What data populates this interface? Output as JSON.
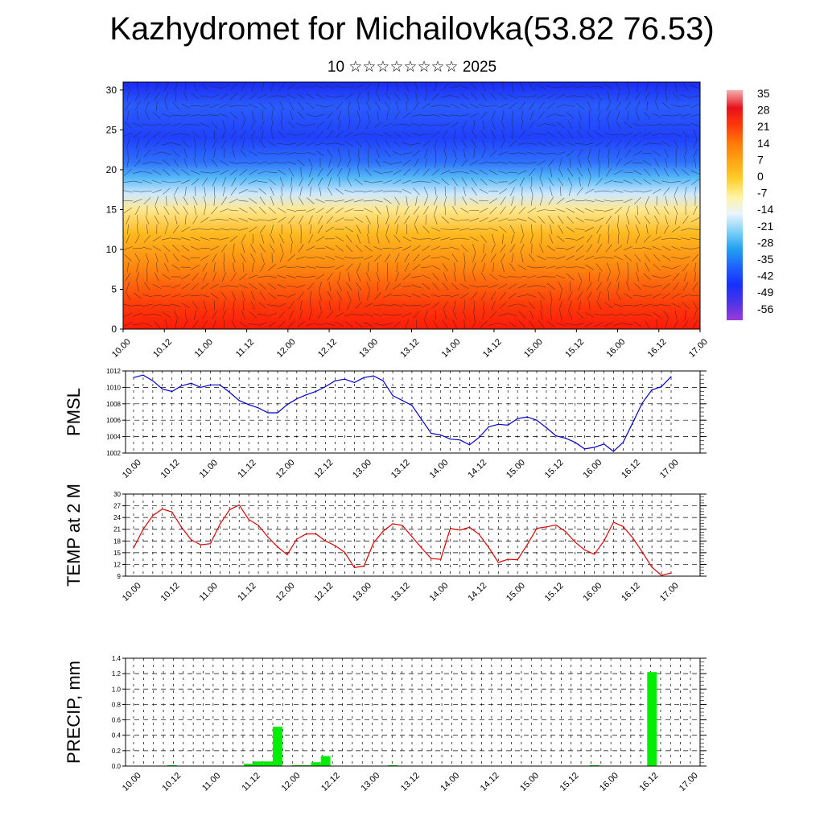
{
  "header": {
    "title": "Kazhydromet for Michailovka(53.82 76.53)",
    "subtitle": "10 ☆☆☆☆☆☆☆☆ 2025"
  },
  "chart_data": [
    {
      "type": "heatmap",
      "name": "cross-section",
      "x_ticks": [
        "10.00",
        "10.12",
        "11.00",
        "11.12",
        "12.00",
        "12.12",
        "13.00",
        "13.12",
        "14.00",
        "14.12",
        "15.00",
        "15.12",
        "16.00",
        "16.12",
        "17.00"
      ],
      "y_ticks": [
        "0",
        "5",
        "10",
        "15",
        "20",
        "25",
        "30"
      ],
      "ylim": [
        0,
        31
      ],
      "colorbar": {
        "labels": [
          "35",
          "28",
          "21",
          "14",
          "7",
          "0",
          "-7",
          "-14",
          "-21",
          "-28",
          "-35",
          "-42",
          "-49",
          "-56"
        ],
        "colors": [
          "#f2b2b2",
          "#e8101b",
          "#ff3a0a",
          "#ff7a08",
          "#ffa515",
          "#ffcd2a",
          "#fff3a0",
          "#eaf4ff",
          "#7fd0f5",
          "#1fa0f0",
          "#2060ff",
          "#1530ff",
          "#4d34e8",
          "#9a3bd6"
        ]
      },
      "profile_levels": [
        0,
        3,
        8,
        12,
        15,
        17,
        19,
        21,
        24,
        28,
        31
      ],
      "profile_colors": [
        "#ff1a0a",
        "#ff3a0a",
        "#ff8a10",
        "#ffba20",
        "#ffe890",
        "#cfe8ff",
        "#55b8f8",
        "#2e70ff",
        "#2040ff",
        "#2a5cff",
        "#1a2af2"
      ]
    },
    {
      "type": "line",
      "name": "PMSL",
      "ylabel": "PMSL",
      "x_ticks": [
        "10.00",
        "10.12",
        "11.00",
        "11.12",
        "12.00",
        "12.12",
        "13.00",
        "13.12",
        "14.00",
        "14.12",
        "15.00",
        "15.12",
        "16.00",
        "16.12",
        "17.00"
      ],
      "y_ticks": [
        "1002",
        "1004",
        "1006",
        "1008",
        "1010",
        "1012"
      ],
      "ylim": [
        1002,
        1012
      ],
      "color": "#0000cc",
      "values": [
        1011.2,
        1011.5,
        1010.8,
        1009.8,
        1009.5,
        1010.2,
        1010.5,
        1010.0,
        1010.3,
        1010.3,
        1009.4,
        1008.4,
        1007.9,
        1007.5,
        1006.9,
        1006.9,
        1007.9,
        1008.6,
        1009.1,
        1009.5,
        1010.1,
        1010.8,
        1011.0,
        1010.6,
        1011.2,
        1011.4,
        1010.8,
        1009.0,
        1008.4,
        1007.8,
        1006.1,
        1004.4,
        1004.2,
        1003.7,
        1003.6,
        1003.0,
        1003.9,
        1005.2,
        1005.5,
        1005.4,
        1006.2,
        1006.4,
        1006.0,
        1005.1,
        1004.1,
        1003.8,
        1003.3,
        1002.5,
        1002.7,
        1003.1,
        1002.2,
        1003.3,
        1005.7,
        1008.1,
        1009.7,
        1010.1,
        1011.3
      ]
    },
    {
      "type": "line",
      "name": "temperature",
      "ylabel": "TEMP at 2 M",
      "x_ticks": [
        "10.00",
        "10.12",
        "11.00",
        "11.12",
        "12.00",
        "12.12",
        "13.00",
        "13.12",
        "14.00",
        "14.12",
        "15.00",
        "15.12",
        "16.00",
        "16.12",
        "17.00"
      ],
      "y_ticks": [
        "9",
        "12",
        "15",
        "18",
        "21",
        "24",
        "27",
        "30"
      ],
      "ylim": [
        9,
        30
      ],
      "color": "#dd0000",
      "values": [
        16.2,
        21.0,
        24.5,
        26.2,
        25.4,
        21.5,
        18.3,
        17.0,
        17.3,
        22.3,
        26.0,
        27.2,
        23.5,
        22.0,
        19.0,
        16.5,
        14.5,
        18.5,
        19.8,
        19.8,
        18.0,
        16.8,
        15.1,
        11.2,
        11.6,
        17.5,
        20.5,
        22.4,
        22.0,
        19.1,
        16.2,
        13.5,
        13.3,
        21.2,
        20.8,
        21.5,
        19.7,
        16.3,
        12.5,
        13.3,
        13.2,
        17.0,
        21.2,
        21.6,
        22.1,
        20.4,
        17.7,
        15.7,
        14.6,
        18.0,
        22.8,
        21.7,
        18.8,
        15.2,
        11.3,
        9.2,
        9.8
      ]
    },
    {
      "type": "bar",
      "name": "precipitation",
      "ylabel": "PRECIP, mm",
      "x_ticks": [
        "10.00",
        "10.12",
        "11.00",
        "11.12",
        "12.00",
        "12.12",
        "13.00",
        "13.12",
        "14.00",
        "14.12",
        "15.00",
        "15.12",
        "16.00",
        "16.12",
        "17.00"
      ],
      "y_ticks": [
        "0.0",
        "0.2",
        "0.4",
        "0.6",
        "0.8",
        "1.0",
        "1.2",
        "1.4"
      ],
      "ylim": [
        0,
        1.4
      ],
      "color": "#00ee00",
      "values": [
        0,
        0,
        0,
        0,
        0.01,
        0,
        0,
        0,
        0,
        0,
        0,
        0,
        0.03,
        0.06,
        0.06,
        0.51,
        0,
        0.01,
        0.01,
        0.05,
        0.13,
        0,
        0,
        0,
        0,
        0,
        0,
        0.01,
        0,
        0,
        0,
        0,
        0,
        0,
        0,
        0,
        0,
        0,
        0,
        0,
        0,
        0,
        0,
        0,
        0,
        0,
        0,
        0,
        0.01,
        0,
        0,
        0,
        0,
        0,
        1.22,
        0,
        0,
        0,
        0
      ]
    }
  ]
}
